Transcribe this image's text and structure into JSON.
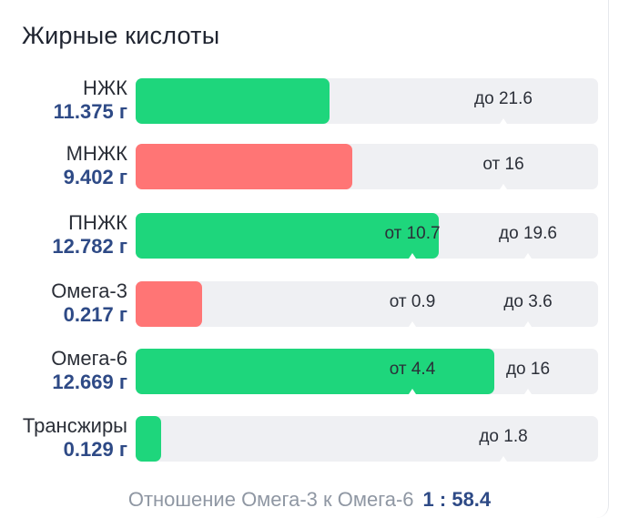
{
  "title": "Жирные кислоты",
  "colors": {
    "ok": "#1ed67c",
    "bad": "#ff7575",
    "track": "#eff0f3",
    "amount": "#2e4a86"
  },
  "chart_data": {
    "type": "bar",
    "orientation": "horizontal",
    "unit": "г",
    "items": [
      {
        "label": "НЖК",
        "amount": "11.375 г",
        "value": 11.375,
        "status": "ok",
        "markers": [
          {
            "text": "до 21.6",
            "value": 21.6
          }
        ]
      },
      {
        "label": "МНЖК",
        "amount": "9.402 г",
        "value": 9.402,
        "status": "bad",
        "markers": [
          {
            "text": "от 16",
            "value": 16
          }
        ]
      },
      {
        "label": "ПНЖК",
        "amount": "12.782 г",
        "value": 12.782,
        "status": "ok",
        "markers": [
          {
            "text": "от 10.7",
            "value": 10.7
          },
          {
            "text": "до 19.6",
            "value": 19.6
          }
        ]
      },
      {
        "label": "Омега-3",
        "amount": "0.217 г",
        "value": 0.217,
        "status": "bad",
        "markers": [
          {
            "text": "от 0.9",
            "value": 0.9
          },
          {
            "text": "до 3.6",
            "value": 3.6
          }
        ]
      },
      {
        "label": "Омега-6",
        "amount": "12.669 г",
        "value": 12.669,
        "status": "ok",
        "markers": [
          {
            "text": "от 4.4",
            "value": 4.4
          },
          {
            "text": "до 16",
            "value": 16
          }
        ]
      },
      {
        "label": "Трансжиры",
        "amount": "0.129 г",
        "value": 0.129,
        "status": "ok",
        "markers": [
          {
            "text": "до 1.8",
            "value": 1.8
          }
        ]
      }
    ]
  },
  "footer": {
    "text": "Отношение Омега-3 к Омега-6",
    "ratio": "1 : 58.4"
  }
}
